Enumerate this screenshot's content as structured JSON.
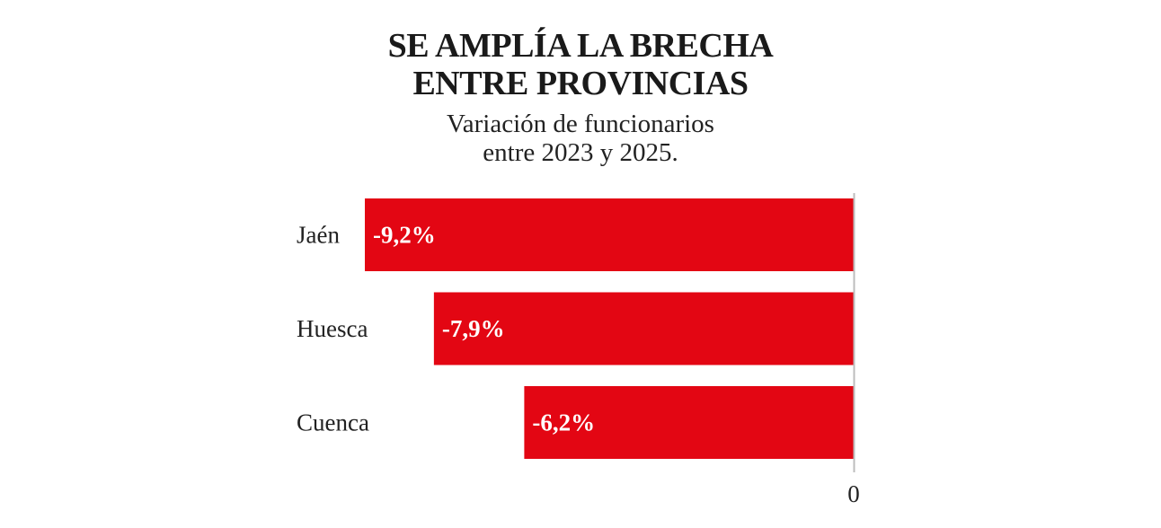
{
  "chart_data": {
    "type": "bar",
    "orientation": "horizontal",
    "title": "SE AMPLÍA LA BRECHA ENTRE PROVINCIAS",
    "title_lines": [
      "SE AMPLÍA LA BRECHA",
      "ENTRE PROVINCIAS"
    ],
    "subtitle": "Variación de funcionarios entre 2023 y 2025.",
    "subtitle_lines": [
      "Variación de funcionarios",
      "entre 2023 y 2025."
    ],
    "categories": [
      "Jaén",
      "Huesca",
      "Cuenca"
    ],
    "values": [
      -9.2,
      -7.9,
      -6.2
    ],
    "data_labels": [
      "-9,2%",
      "-7,9%",
      "-6,2%"
    ],
    "xlabel": "",
    "ylabel": "",
    "xlim": [
      -9.2,
      0
    ],
    "x_ticks": [
      0
    ],
    "x_tick_labels": [
      "0"
    ],
    "grid": false,
    "legend": "none",
    "bar_color": "#e30613",
    "axis_color": "#bdbdbd"
  }
}
